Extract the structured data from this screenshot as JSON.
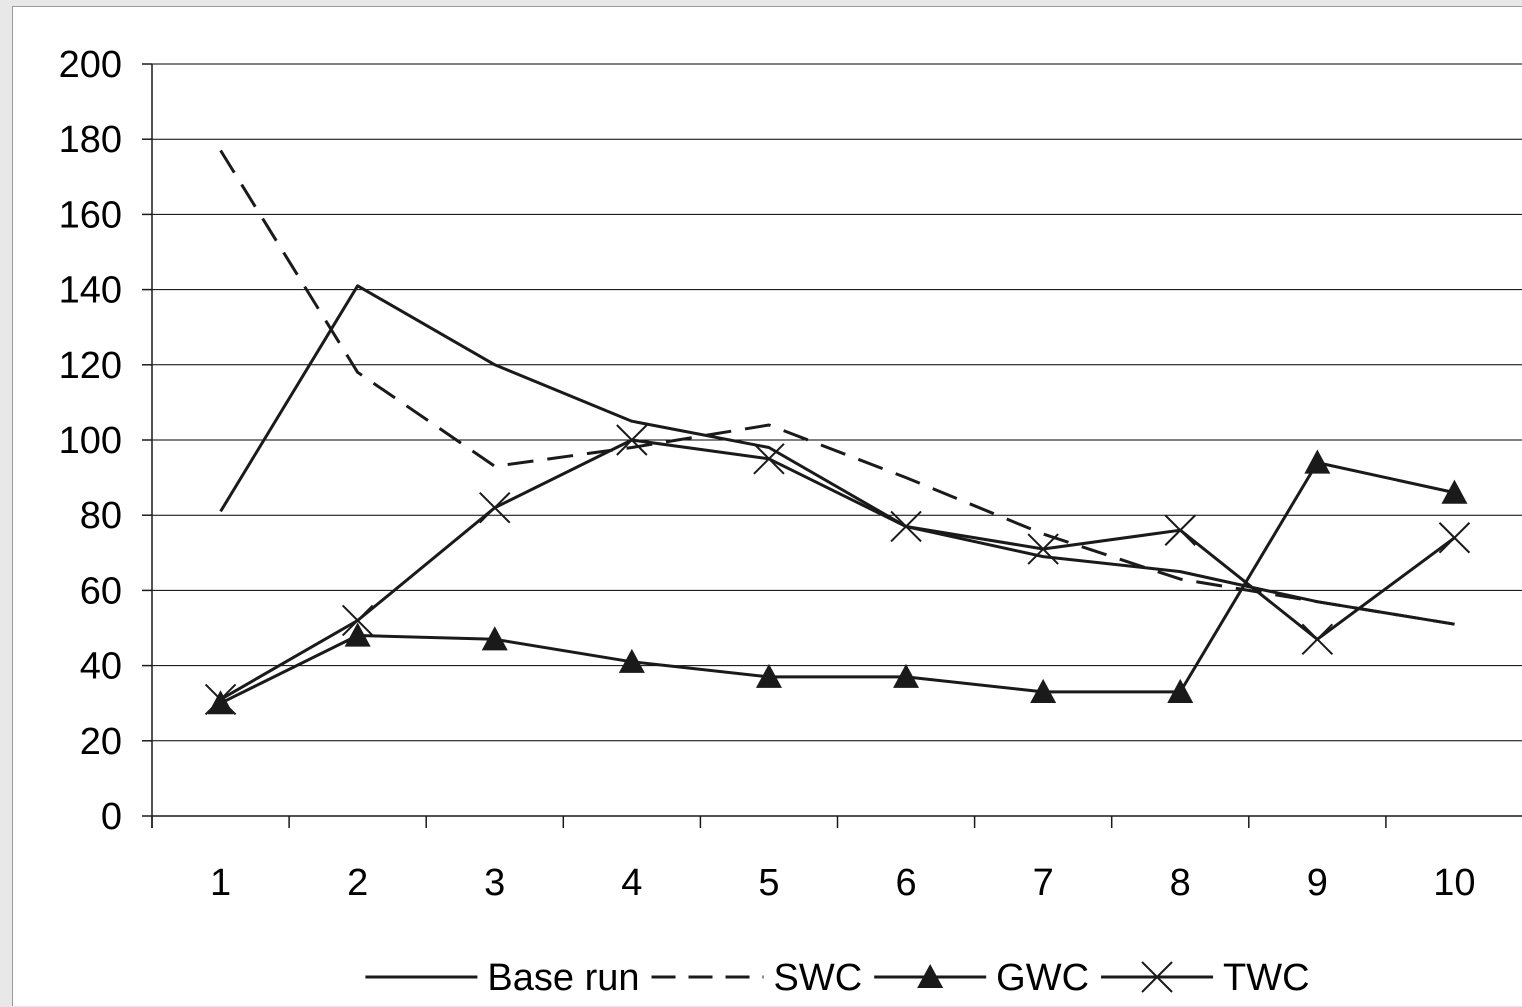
{
  "chart_data": {
    "type": "line",
    "title": "",
    "xlabel": "",
    "ylabel": "",
    "categories": [
      "1",
      "2",
      "3",
      "4",
      "5",
      "6",
      "7",
      "8",
      "9",
      "10"
    ],
    "ylim": [
      0,
      200
    ],
    "yticks": [
      0,
      20,
      40,
      60,
      80,
      100,
      120,
      140,
      160,
      180,
      200
    ],
    "grid": "horizontal",
    "legend_position": "bottom",
    "series": [
      {
        "name": "Base run",
        "style": "solid",
        "marker": "none",
        "values": [
          81,
          141,
          120,
          105,
          98,
          77,
          69,
          65,
          57,
          51
        ]
      },
      {
        "name": "SWC",
        "style": "dashed",
        "marker": "none",
        "values": [
          177,
          118,
          93,
          98,
          104,
          90,
          75,
          63,
          57,
          51
        ]
      },
      {
        "name": "GWC",
        "style": "solid",
        "marker": "triangle",
        "values": [
          30,
          48,
          47,
          41,
          37,
          37,
          33,
          33,
          94,
          86
        ]
      },
      {
        "name": "TWC",
        "style": "solid",
        "marker": "x",
        "values": [
          31,
          52,
          82,
          100,
          95,
          77,
          71,
          76,
          47,
          74
        ]
      }
    ],
    "colors": {
      "line": "#1a1a1a",
      "grid": "#000000",
      "background": "#ffffff",
      "frame": "#e8e8e8"
    }
  }
}
